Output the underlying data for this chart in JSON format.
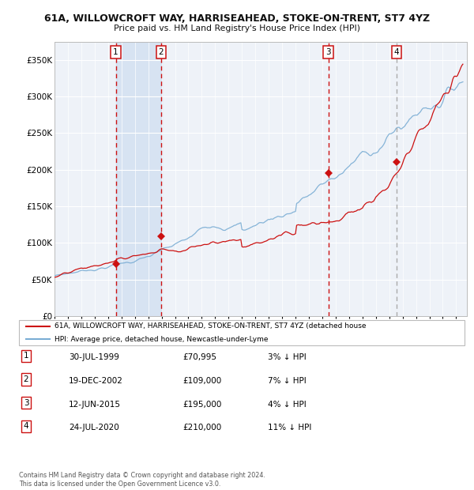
{
  "title1": "61A, WILLOWCROFT WAY, HARRISEAHEAD, STOKE-ON-TRENT, ST7 4YZ",
  "title2": "Price paid vs. HM Land Registry's House Price Index (HPI)",
  "background_color": "#ffffff",
  "plot_bg_color": "#eef2f8",
  "legend_line1": "61A, WILLOWCROFT WAY, HARRISEAHEAD, STOKE-ON-TRENT, ST7 4YZ (detached house",
  "legend_line2": "HPI: Average price, detached house, Newcastle-under-Lyme",
  "table_rows": [
    [
      "1",
      "30-JUL-1999",
      "£70,995",
      "3% ↓ HPI"
    ],
    [
      "2",
      "19-DEC-2002",
      "£109,000",
      "7% ↓ HPI"
    ],
    [
      "3",
      "12-JUN-2015",
      "£195,000",
      "4% ↓ HPI"
    ],
    [
      "4",
      "24-JUL-2020",
      "£210,000",
      "11% ↓ HPI"
    ]
  ],
  "footer": "Contains HM Land Registry data © Crown copyright and database right 2024.\nThis data is licensed under the Open Government Licence v3.0.",
  "ylim": [
    0,
    375000
  ],
  "yticks": [
    0,
    50000,
    100000,
    150000,
    200000,
    250000,
    300000,
    350000
  ],
  "ytick_labels": [
    "£0",
    "£50K",
    "£100K",
    "£150K",
    "£200K",
    "£250K",
    "£300K",
    "£350K"
  ],
  "hpi_color": "#7aadd4",
  "price_color": "#cc1111",
  "marker_color": "#cc1111",
  "sale_dates": [
    "1999-07-30",
    "2002-12-19",
    "2015-06-12",
    "2020-07-24"
  ],
  "sale_prices": [
    70995,
    109000,
    195000,
    210000
  ],
  "sale_labels": [
    "1",
    "2",
    "3",
    "4"
  ],
  "vline_colors": [
    "#cc1111",
    "#cc1111",
    "#cc1111",
    "#aaaaaa"
  ],
  "shade_x1": 1999.58,
  "shade_x2": 2003.0,
  "xmin": 1995.0,
  "xmax": 2025.8
}
